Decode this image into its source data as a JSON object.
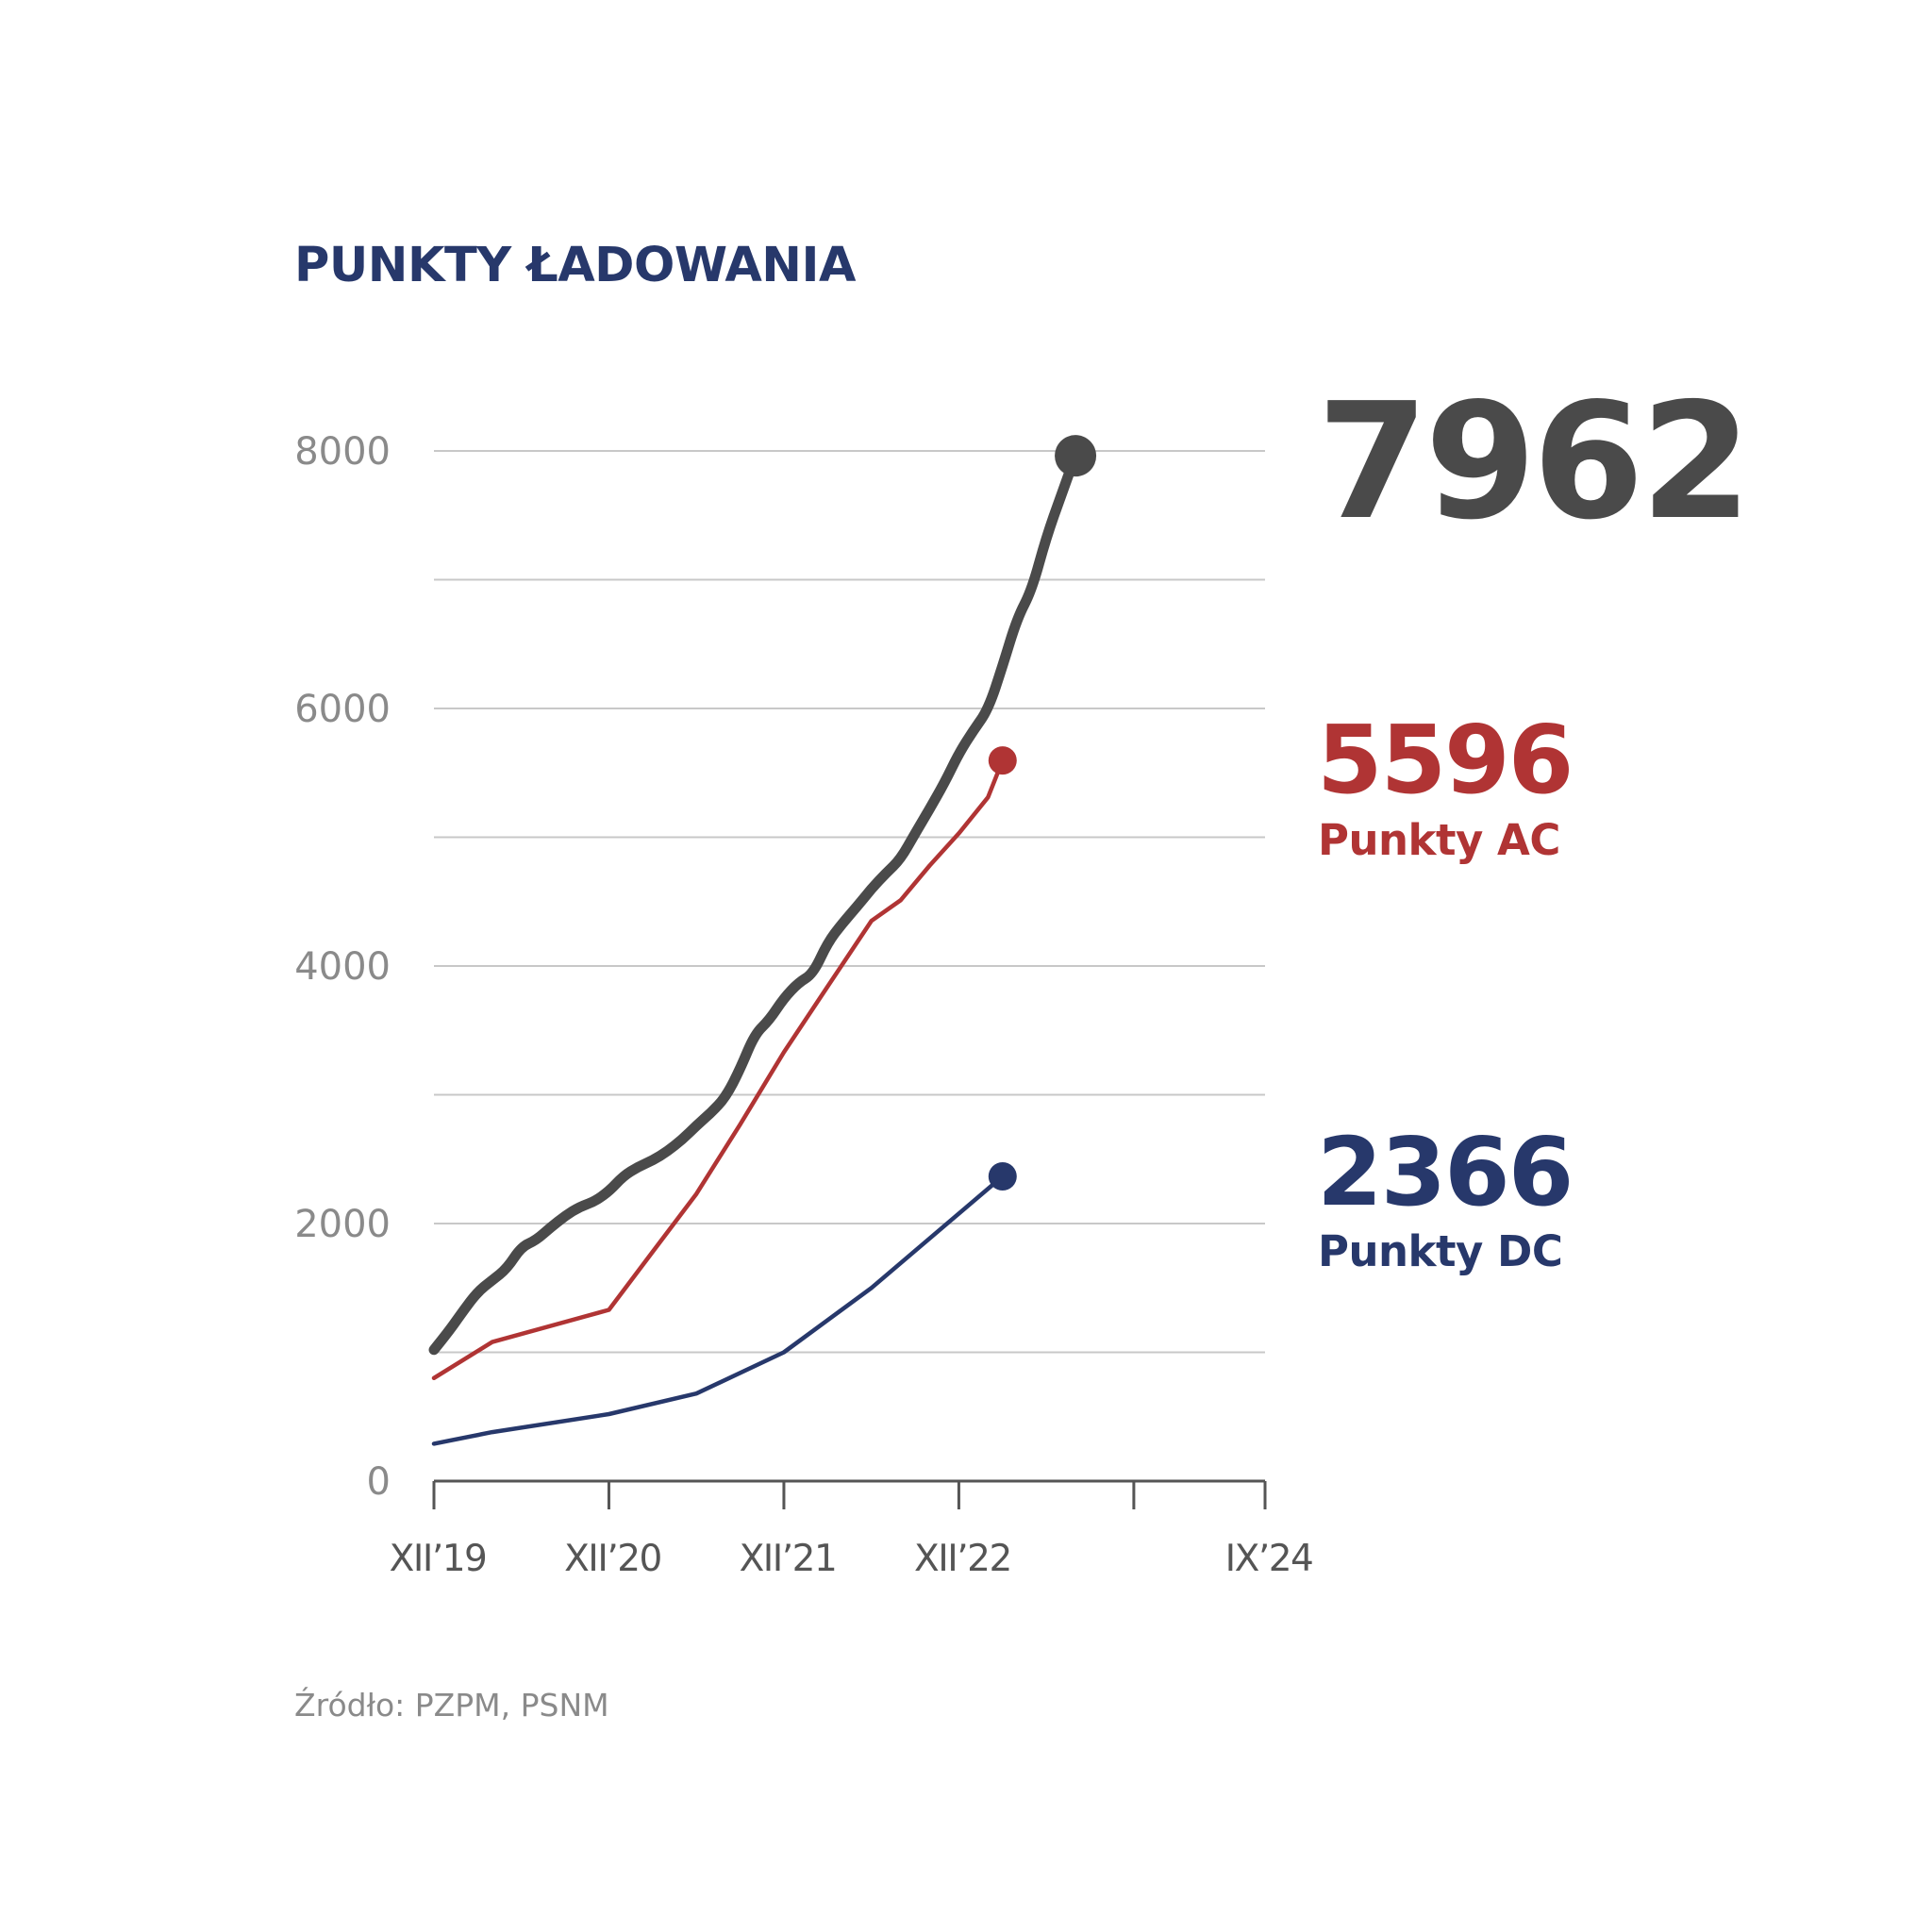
{
  "chart_data": {
    "type": "line",
    "title": "PUNKTY ŁADOWANIA",
    "xlabel": "",
    "ylabel": "",
    "x_ticks": [
      "XII’19",
      "XII’20",
      "XII’21",
      "XII’22",
      "",
      "IX’24"
    ],
    "x_range": [
      "2019-12",
      "2024-09"
    ],
    "y_ticks": [
      "0",
      "2000",
      "4000",
      "6000",
      "8000"
    ],
    "ylim": [
      0,
      8000
    ],
    "grid": "horizontal every 1000",
    "series": [
      {
        "key": "total",
        "name": "",
        "color": "#4a4a4a",
        "end_label": "7962",
        "points": [
          [
            "2019-12",
            1020
          ],
          [
            "2020-01",
            1160
          ],
          [
            "2020-02",
            1320
          ],
          [
            "2020-03",
            1470
          ],
          [
            "2020-04",
            1560
          ],
          [
            "2020-05",
            1650
          ],
          [
            "2020-06",
            1820
          ],
          [
            "2020-07",
            1870
          ],
          [
            "2020-08",
            1970
          ],
          [
            "2020-09",
            2060
          ],
          [
            "2020-10",
            2130
          ],
          [
            "2020-11",
            2170
          ],
          [
            "2020-12",
            2250
          ],
          [
            "2021-01",
            2370
          ],
          [
            "2021-02",
            2440
          ],
          [
            "2021-03",
            2490
          ],
          [
            "2021-04",
            2560
          ],
          [
            "2021-05",
            2650
          ],
          [
            "2021-06",
            2760
          ],
          [
            "2021-07",
            2860
          ],
          [
            "2021-08",
            2980
          ],
          [
            "2021-09",
            3200
          ],
          [
            "2021-10",
            3470
          ],
          [
            "2021-11",
            3580
          ],
          [
            "2021-12",
            3750
          ],
          [
            "2022-01",
            3870
          ],
          [
            "2022-02",
            3940
          ],
          [
            "2022-03",
            4180
          ],
          [
            "2022-04",
            4330
          ],
          [
            "2022-05",
            4460
          ],
          [
            "2022-06",
            4600
          ],
          [
            "2022-07",
            4720
          ],
          [
            "2022-08",
            4830
          ],
          [
            "2022-09",
            5030
          ],
          [
            "2022-10",
            5220
          ],
          [
            "2022-11",
            5420
          ],
          [
            "2022-12",
            5650
          ],
          [
            "2023-01",
            5830
          ],
          [
            "2023-02",
            5990
          ],
          [
            "2023-03",
            6330
          ],
          [
            "2023-04",
            6700
          ],
          [
            "2023-05",
            6920
          ],
          [
            "2023-06",
            7330
          ],
          [
            "2023-07",
            7650
          ],
          [
            "2023-08",
            7962
          ]
        ]
      },
      {
        "key": "ac",
        "name": "Punkty AC",
        "color": "#b03434",
        "end_label": "5596",
        "points": [
          [
            "2019-12",
            800
          ],
          [
            "2020-04",
            1080
          ],
          [
            "2020-12",
            1330
          ],
          [
            "2021-03",
            1780
          ],
          [
            "2021-06",
            2230
          ],
          [
            "2021-09",
            2770
          ],
          [
            "2021-12",
            3330
          ],
          [
            "2022-03",
            3840
          ],
          [
            "2022-06",
            4350
          ],
          [
            "2022-08",
            4510
          ],
          [
            "2022-10",
            4780
          ],
          [
            "2022-12",
            5030
          ],
          [
            "2023-02",
            5310
          ],
          [
            "2023-03",
            5596
          ]
        ]
      },
      {
        "key": "dc",
        "name": "Punkty DC",
        "color": "#27386b",
        "end_label": "2366",
        "points": [
          [
            "2019-12",
            290
          ],
          [
            "2020-04",
            380
          ],
          [
            "2020-12",
            520
          ],
          [
            "2021-06",
            680
          ],
          [
            "2021-12",
            1000
          ],
          [
            "2022-06",
            1500
          ],
          [
            "2023-03",
            2366
          ]
        ]
      }
    ]
  },
  "source": "Źródło: PZPM, PSNM"
}
